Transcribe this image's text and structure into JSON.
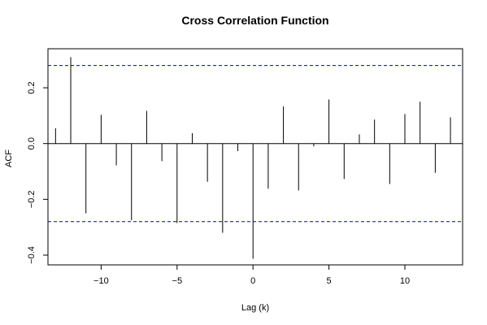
{
  "chart_data": {
    "type": "bar",
    "title": "Cross Correlation Function",
    "xlabel": "Lag (k)",
    "ylabel": "ACF",
    "xlim": [
      -13.5,
      13.8
    ],
    "ylim": [
      -0.435,
      0.34
    ],
    "x_ticks": [
      -10,
      -5,
      0,
      5,
      10
    ],
    "x_tick_labels": [
      "−10",
      "−5",
      "0",
      "5",
      "10"
    ],
    "y_ticks": [
      -0.4,
      -0.2,
      0.0,
      0.2
    ],
    "y_tick_labels": [
      "−0.4",
      "−0.2",
      "0.0",
      "0.2"
    ],
    "confidence_bounds": [
      0.28,
      -0.28
    ],
    "lags": [
      -13,
      -12,
      -11,
      -10,
      -9,
      -8,
      -7,
      -6,
      -5,
      -4,
      -3,
      -2,
      -1,
      0,
      1,
      2,
      3,
      4,
      5,
      6,
      7,
      8,
      9,
      10,
      11,
      12,
      13
    ],
    "values": [
      0.055,
      0.31,
      -0.25,
      0.103,
      -0.078,
      -0.275,
      0.117,
      -0.063,
      -0.285,
      0.037,
      -0.137,
      -0.32,
      -0.027,
      -0.413,
      -0.162,
      0.133,
      -0.168,
      -0.01,
      0.158,
      -0.127,
      0.033,
      0.086,
      -0.145,
      0.106,
      0.15,
      -0.105,
      0.094
    ],
    "colors": {
      "bar": "#000000",
      "bounds": "#0000cc",
      "zero_line": "#000000",
      "box": "#000000"
    }
  }
}
